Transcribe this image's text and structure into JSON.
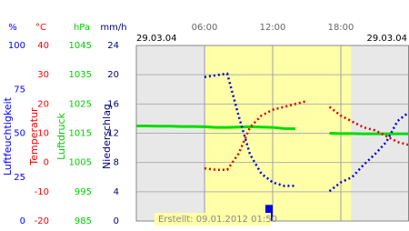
{
  "chart_data": {
    "type": "line",
    "date_left": "29.03.04",
    "date_right": "29.03.04",
    "footer": "Erstellt: 09.01.2012 01:50",
    "xlim": [
      0,
      24
    ],
    "xticks": [
      {
        "value": 6,
        "label": "06:00"
      },
      {
        "value": 12,
        "label": "12:00"
      },
      {
        "value": 18,
        "label": "18:00"
      }
    ],
    "daylight": [
      6.1,
      18.9
    ],
    "grid": true,
    "axes": [
      {
        "unit": "%",
        "title": "Luftfeuchtigkeit",
        "color": "#0000ff",
        "lim": [
          0,
          100
        ],
        "ticks": [
          0,
          25,
          50,
          75,
          100
        ]
      },
      {
        "unit": "°C",
        "title": "Temperatur",
        "color": "#ff0000",
        "lim": [
          -20,
          40
        ],
        "ticks": [
          -20,
          -10,
          0,
          10,
          20,
          30,
          40
        ]
      },
      {
        "unit": "hPa",
        "title": "Luftdruck",
        "color": "#00cc00",
        "lim": [
          985,
          1045
        ],
        "ticks": [
          985,
          995,
          1005,
          1015,
          1025,
          1035,
          1045
        ]
      },
      {
        "unit": "mm/h",
        "title": "Niederschlag",
        "color": "#000080",
        "lim": [
          0,
          24
        ],
        "ticks": [
          0,
          4,
          8,
          12,
          16,
          20,
          24
        ]
      }
    ],
    "x": [
      0,
      1,
      2,
      3,
      4,
      5,
      6,
      7,
      8,
      9,
      10,
      11,
      12,
      13,
      14,
      15,
      16,
      17,
      18,
      19,
      20,
      21,
      22,
      23,
      24
    ],
    "series": [
      {
        "kind": "line",
        "axis": 2,
        "color": "#00dd00",
        "values": [
          1017.5,
          1017.5,
          1017.4,
          1017.4,
          1017.3,
          1017.3,
          1017.2,
          1017.0,
          1017.0,
          1017.1,
          1017.2,
          1017.1,
          1017.0,
          1016.6,
          1016.5,
          null,
          null,
          1015.0,
          1014.9,
          1014.9,
          1014.8,
          1014.8,
          1014.8,
          1014.8,
          1014.8
        ]
      },
      {
        "kind": "dots",
        "axis": 0,
        "color": "#0000dd",
        "values": [
          null,
          null,
          null,
          null,
          null,
          null,
          82,
          83,
          84,
          60,
          38,
          27,
          22,
          20,
          20,
          null,
          null,
          17,
          22,
          25,
          32,
          38,
          45,
          57,
          62
        ]
      },
      {
        "kind": "dots",
        "axis": 1,
        "color": "#dd0000",
        "values": [
          null,
          null,
          null,
          null,
          null,
          null,
          -2,
          -2.5,
          -2.5,
          3,
          12,
          16,
          18,
          19,
          20,
          21,
          null,
          19,
          16,
          14,
          12,
          11,
          9,
          7,
          6
        ]
      },
      {
        "kind": "bar",
        "axis": 3,
        "color": "#0000dd",
        "values": [
          0,
          0,
          0,
          0,
          0,
          0,
          0,
          0,
          0,
          0,
          0,
          0,
          2.2,
          0,
          0,
          0,
          0,
          0,
          0,
          0,
          0,
          0,
          0,
          0,
          0
        ]
      }
    ]
  }
}
